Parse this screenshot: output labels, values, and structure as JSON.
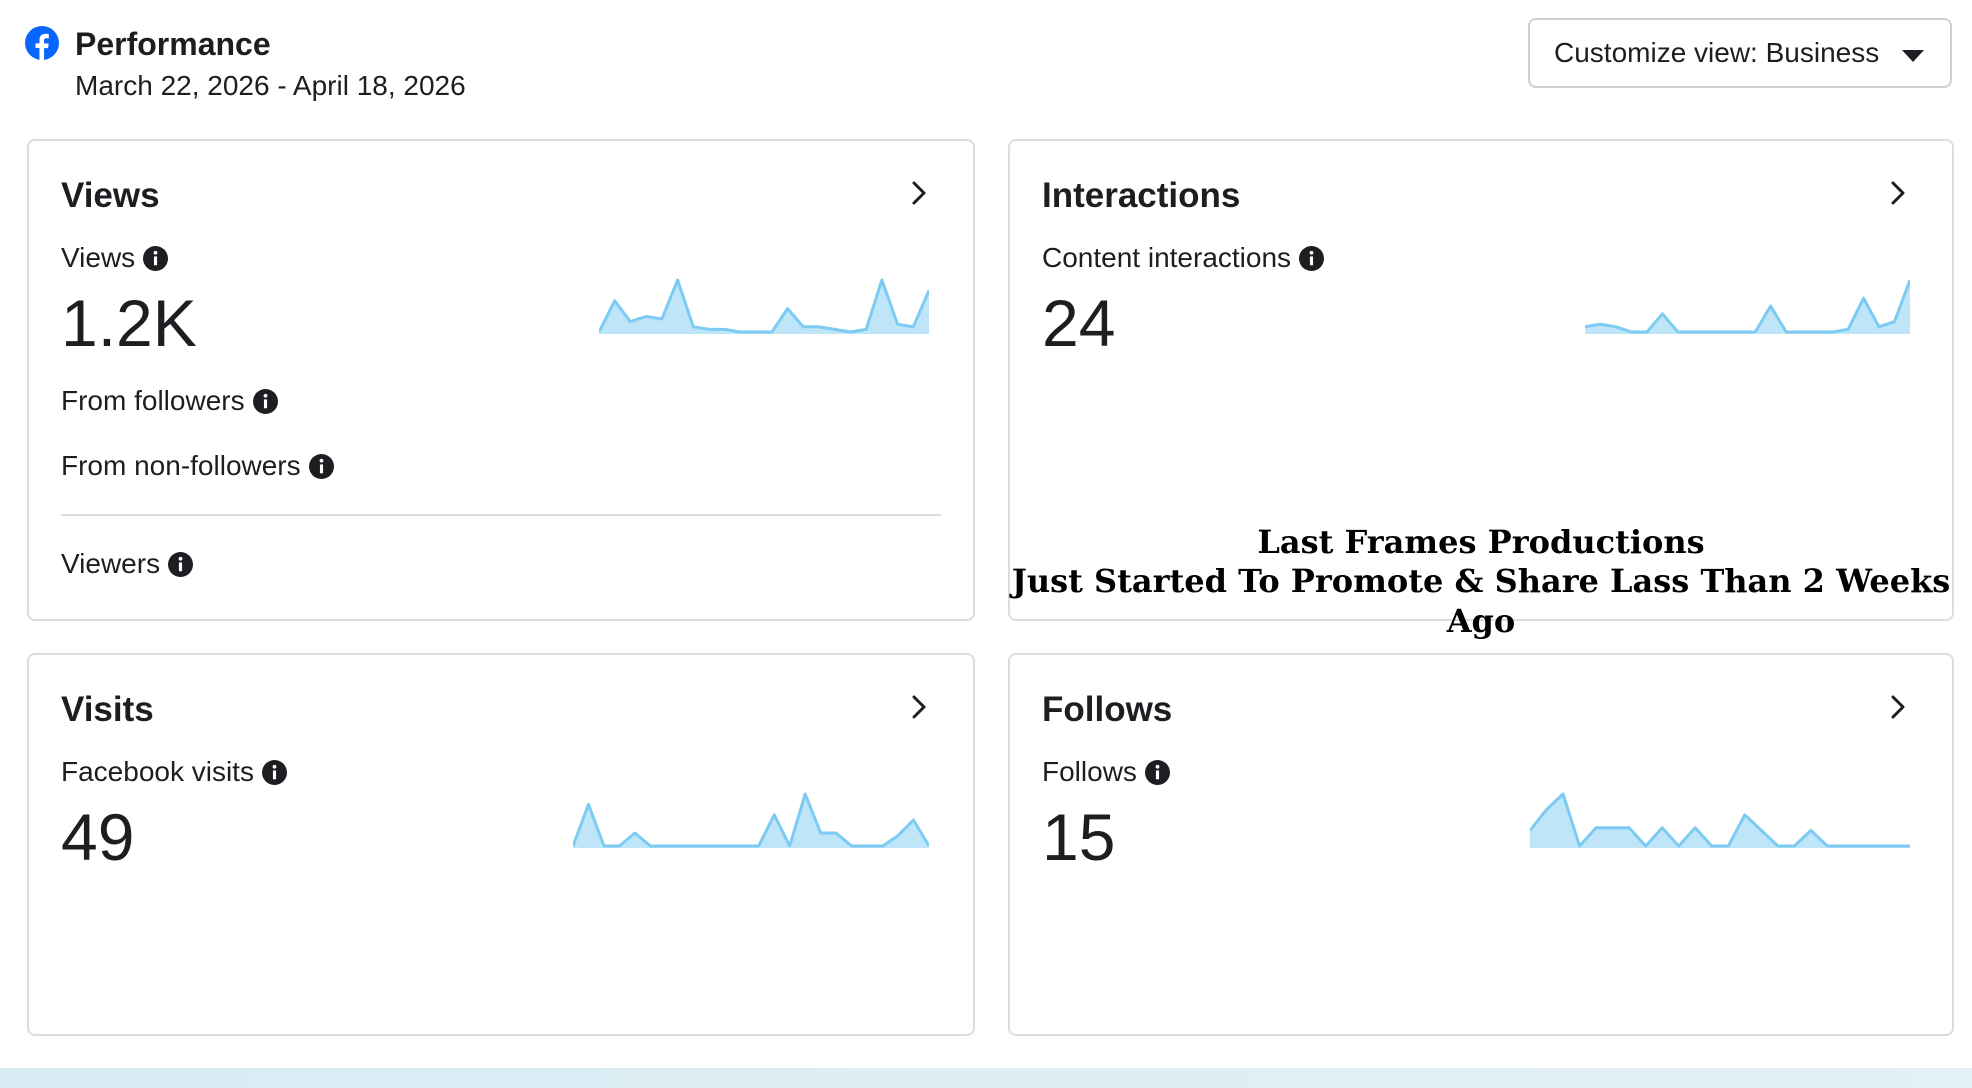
{
  "header": {
    "title": "Performance",
    "date_range": "March 22, 2026 - April 18, 2026",
    "customize_label": "Customize view: Business"
  },
  "cards": {
    "views": {
      "title": "Views",
      "metric_label": "Views",
      "metric_value": "1.2K",
      "from_followers_label": "From followers",
      "from_non_followers_label": "From non-followers",
      "viewers_label": "Viewers",
      "sparkline": [
        0,
        0.6,
        0.2,
        0.3,
        0.25,
        1.0,
        0.1,
        0.05,
        0.05,
        0.0,
        0.0,
        0.0,
        0.45,
        0.1,
        0.1,
        0.05,
        0.0,
        0.05,
        1.0,
        0.15,
        0.1,
        0.8
      ]
    },
    "interactions": {
      "title": "Interactions",
      "metric_label": "Content interactions",
      "metric_value": "24",
      "sparkline": [
        0.1,
        0.15,
        0.1,
        0.0,
        0.0,
        0.35,
        0.0,
        0.0,
        0.0,
        0.0,
        0.0,
        0.0,
        0.5,
        0.0,
        0.0,
        0.0,
        0.0,
        0.05,
        0.65,
        0.1,
        0.2,
        1.0
      ],
      "overlay_line1": "Last Frames Productions",
      "overlay_line2": "Just Started To Promote & Share Lass Than 2 Weeks Ago"
    },
    "visits": {
      "title": "Visits",
      "metric_label": "Facebook visits",
      "metric_value": "49",
      "sparkline": [
        0,
        0.8,
        0.0,
        0.0,
        0.25,
        0.0,
        0.0,
        0.0,
        0.0,
        0.0,
        0.0,
        0.0,
        0.0,
        0.6,
        0.0,
        1.0,
        0.25,
        0.25,
        0.0,
        0.0,
        0.0,
        0.2,
        0.5,
        0.0
      ]
    },
    "follows": {
      "title": "Follows",
      "metric_label": "Follows",
      "metric_value": "15",
      "sparkline": [
        0.3,
        0.7,
        1.0,
        0.0,
        0.35,
        0.35,
        0.35,
        0.0,
        0.35,
        0.0,
        0.35,
        0.0,
        0.0,
        0.6,
        0.3,
        0.0,
        0.0,
        0.3,
        0.0,
        0.0,
        0.0,
        0.0,
        0.0,
        0.0
      ]
    }
  },
  "colors": {
    "spark_line": "#7dcbf2",
    "spark_fill": "#bfe5f9",
    "brand": "#0866ff"
  },
  "icons": {
    "logo": "facebook-logo-icon",
    "info": "info-icon",
    "chevron": "chevron-right-icon",
    "caret": "caret-down-icon"
  }
}
